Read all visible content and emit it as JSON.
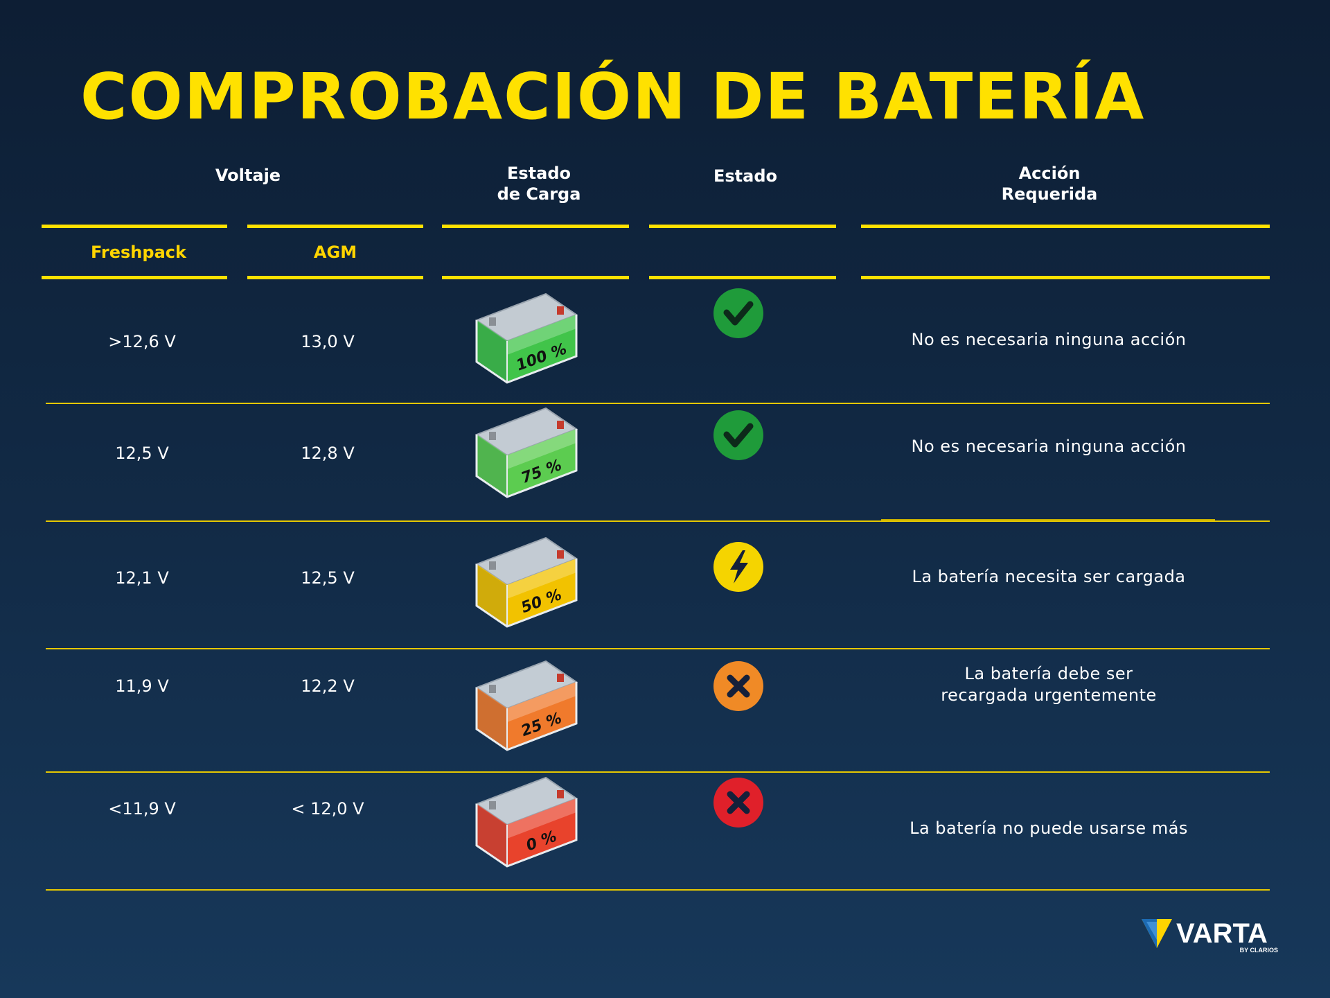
{
  "title": "COMPROBACIÓN DE BATERÍA",
  "headers": {
    "voltage": "Voltaje",
    "state_of_charge": "Estado\nde Carga",
    "status": "Estado",
    "action": "Acción\nRequerida"
  },
  "subheaders": {
    "freshpack": "Freshpack",
    "agm": "AGM"
  },
  "rows": [
    {
      "freshpack": ">12,6 V",
      "agm": "13,0 V",
      "charge": "100 %",
      "battery_color": "#41c44a",
      "status_icon": "check-icon",
      "status_color": "#1f9b3a",
      "action": "No es necesaria ninguna acción"
    },
    {
      "freshpack": "12,5 V",
      "agm": "12,8 V",
      "charge": "75 %",
      "battery_color": "#5ccc50",
      "status_icon": "check-icon",
      "status_color": "#1f9b3a",
      "action": "No es necesaria ninguna acción"
    },
    {
      "freshpack": "12,1 V",
      "agm": "12,5 V",
      "charge": "50 %",
      "battery_color": "#f2c200",
      "status_icon": "lightning-icon",
      "status_color": "#f5d400",
      "action": "La batería necesita ser cargada"
    },
    {
      "freshpack": "11,9 V",
      "agm": "12,2 V",
      "charge": "25 %",
      "battery_color": "#f07a2c",
      "status_icon": "x-icon",
      "status_color": "#f08a26",
      "action": "La batería debe ser\nrecargada urgentemente"
    },
    {
      "freshpack": "<11,9 V",
      "agm": "< 12,0 V",
      "charge": "0 %",
      "battery_color": "#e8432c",
      "status_icon": "x-icon",
      "status_color": "#e0202a",
      "action": "La batería no puede usarse más"
    }
  ],
  "logo": {
    "brand": "VARTA",
    "tagline": "BY CLARIOS"
  }
}
